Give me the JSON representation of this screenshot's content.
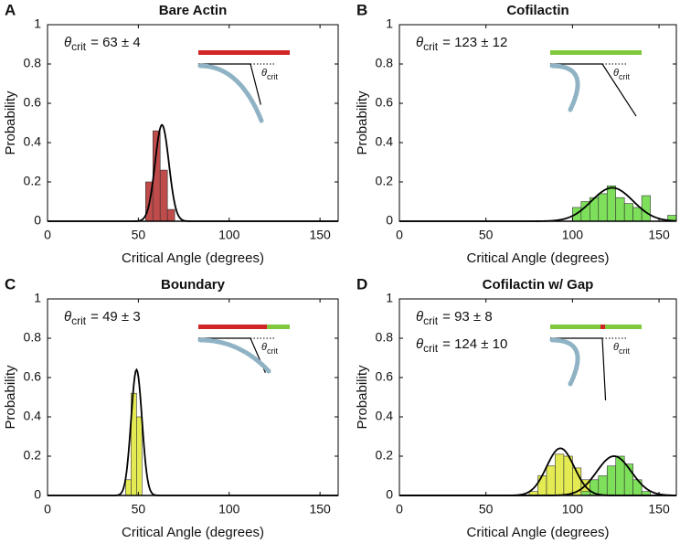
{
  "chart_data": [
    {
      "type": "histogram",
      "panel": "A",
      "title": "Bare Actin",
      "xlabel": "Critical Angle (degrees)",
      "ylabel": "Probability",
      "xlim": [
        0,
        160
      ],
      "ylim": [
        0,
        1
      ],
      "xticks": [
        0,
        50,
        100,
        150
      ],
      "yticks": [
        0,
        0.2,
        0.4,
        0.6,
        0.8,
        1
      ],
      "series": [
        {
          "color": "#bf4b4b",
          "bins": [
            54,
            58,
            62,
            66,
            70,
            74
          ],
          "values": [
            0.2,
            0.46,
            0.26,
            0.06,
            0.0
          ]
        }
      ],
      "fits": [
        {
          "mean": 63,
          "sd": 3.8,
          "peak": 0.49
        }
      ],
      "annotations": [
        {
          "symbol": "θ",
          "subscript": "crit",
          "text": "= 63 ± 4"
        }
      ],
      "inset_label": {
        "symbol": "θ",
        "subscript": "crit"
      }
    },
    {
      "type": "histogram",
      "panel": "B",
      "title": "Cofilactin",
      "xlabel": "Critical Angle (degrees)",
      "ylabel": "Probability",
      "xlim": [
        0,
        160
      ],
      "ylim": [
        0,
        1
      ],
      "xticks": [
        0,
        50,
        100,
        150
      ],
      "yticks": [
        0,
        0.2,
        0.4,
        0.6,
        0.8,
        1
      ],
      "series": [
        {
          "color": "#7ee05a",
          "bins": [
            100,
            105,
            110,
            115,
            120,
            125,
            130,
            135,
            140,
            145,
            150,
            155,
            160
          ],
          "values": [
            0.07,
            0.1,
            0.12,
            0.14,
            0.18,
            0.12,
            0.09,
            0.07,
            0.13,
            0.0,
            0.0,
            0.03
          ]
        }
      ],
      "fits": [
        {
          "mean": 123,
          "sd": 12,
          "peak": 0.17
        }
      ],
      "annotations": [
        {
          "symbol": "θ",
          "subscript": "crit",
          "text": "= 123 ± 12"
        }
      ],
      "inset_label": {
        "symbol": "θ",
        "subscript": "crit"
      }
    },
    {
      "type": "histogram",
      "panel": "C",
      "title": "Boundary",
      "xlabel": "Critical Angle (degrees)",
      "ylabel": "Probability",
      "xlim": [
        0,
        160
      ],
      "ylim": [
        0,
        1
      ],
      "xticks": [
        0,
        50,
        100,
        150
      ],
      "yticks": [
        0,
        0.2,
        0.4,
        0.6,
        0.8,
        1
      ],
      "series": [
        {
          "color": "#e4ea52",
          "bins": [
            43,
            46,
            49,
            52
          ],
          "values": [
            0.08,
            0.52,
            0.4
          ]
        }
      ],
      "fits": [
        {
          "mean": 49,
          "sd": 3,
          "peak": 0.64
        }
      ],
      "annotations": [
        {
          "symbol": "θ",
          "subscript": "crit",
          "text": "= 49 ± 3"
        }
      ],
      "inset_label": {
        "symbol": "θ",
        "subscript": "crit"
      }
    },
    {
      "type": "histogram",
      "panel": "D",
      "title": "Cofilactin w/ Gap",
      "xlabel": "Critical Angle (degrees)",
      "ylabel": "Probability",
      "xlim": [
        0,
        160
      ],
      "ylim": [
        0,
        1
      ],
      "xticks": [
        0,
        50,
        100,
        150
      ],
      "yticks": [
        0,
        0.2,
        0.4,
        0.6,
        0.8,
        1
      ],
      "series": [
        {
          "color": "#e4ea52",
          "bins": [
            75,
            80,
            85,
            90,
            95,
            100,
            105,
            110,
            115
          ],
          "values": [
            0.02,
            0.1,
            0.15,
            0.21,
            0.2,
            0.14,
            0.08,
            0.02
          ]
        },
        {
          "color": "#7ee05a",
          "bins": [
            105,
            110,
            115,
            120,
            125,
            130,
            135,
            140,
            145
          ],
          "values": [
            0.02,
            0.08,
            0.1,
            0.15,
            0.2,
            0.16,
            0.08,
            0.02
          ]
        }
      ],
      "fits": [
        {
          "mean": 93,
          "sd": 8,
          "peak": 0.24
        },
        {
          "mean": 124,
          "sd": 10,
          "peak": 0.2
        }
      ],
      "annotations": [
        {
          "symbol": "θ",
          "subscript": "crit",
          "text": "= 93 ± 8"
        },
        {
          "symbol": "θ",
          "subscript": "crit",
          "text": "= 124 ± 10"
        }
      ],
      "inset_label": {
        "symbol": "θ",
        "subscript": "crit"
      }
    }
  ]
}
